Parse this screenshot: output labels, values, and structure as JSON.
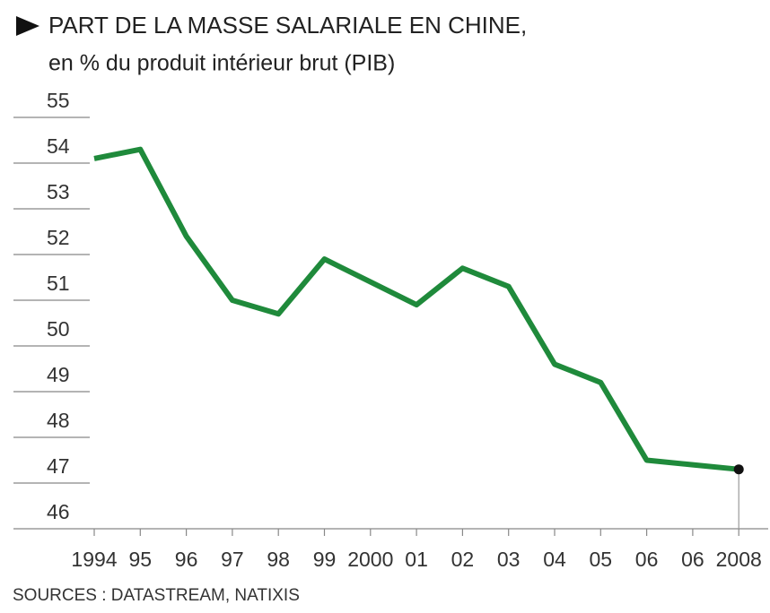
{
  "chart_data": {
    "type": "line",
    "title": "PART DE LA MASSE SALARIALE EN CHINE,",
    "subtitle": "en % du produit intérieur brut (PIB)",
    "source": "SOURCES : DATASTREAM, NATIXIS",
    "categories": [
      "1994",
      "95",
      "96",
      "97",
      "98",
      "99",
      "2000",
      "01",
      "02",
      "03",
      "04",
      "05",
      "06",
      "06",
      "2008"
    ],
    "values": [
      54.1,
      54.3,
      52.4,
      51.0,
      50.7,
      51.9,
      51.4,
      50.9,
      51.7,
      51.3,
      49.6,
      49.2,
      47.5,
      47.4,
      47.3
    ],
    "color": "#1f8a3b",
    "ylim": [
      46,
      55
    ],
    "yticks": [
      46,
      47,
      48,
      49,
      50,
      51,
      52,
      53,
      54,
      55
    ],
    "grid": true
  }
}
